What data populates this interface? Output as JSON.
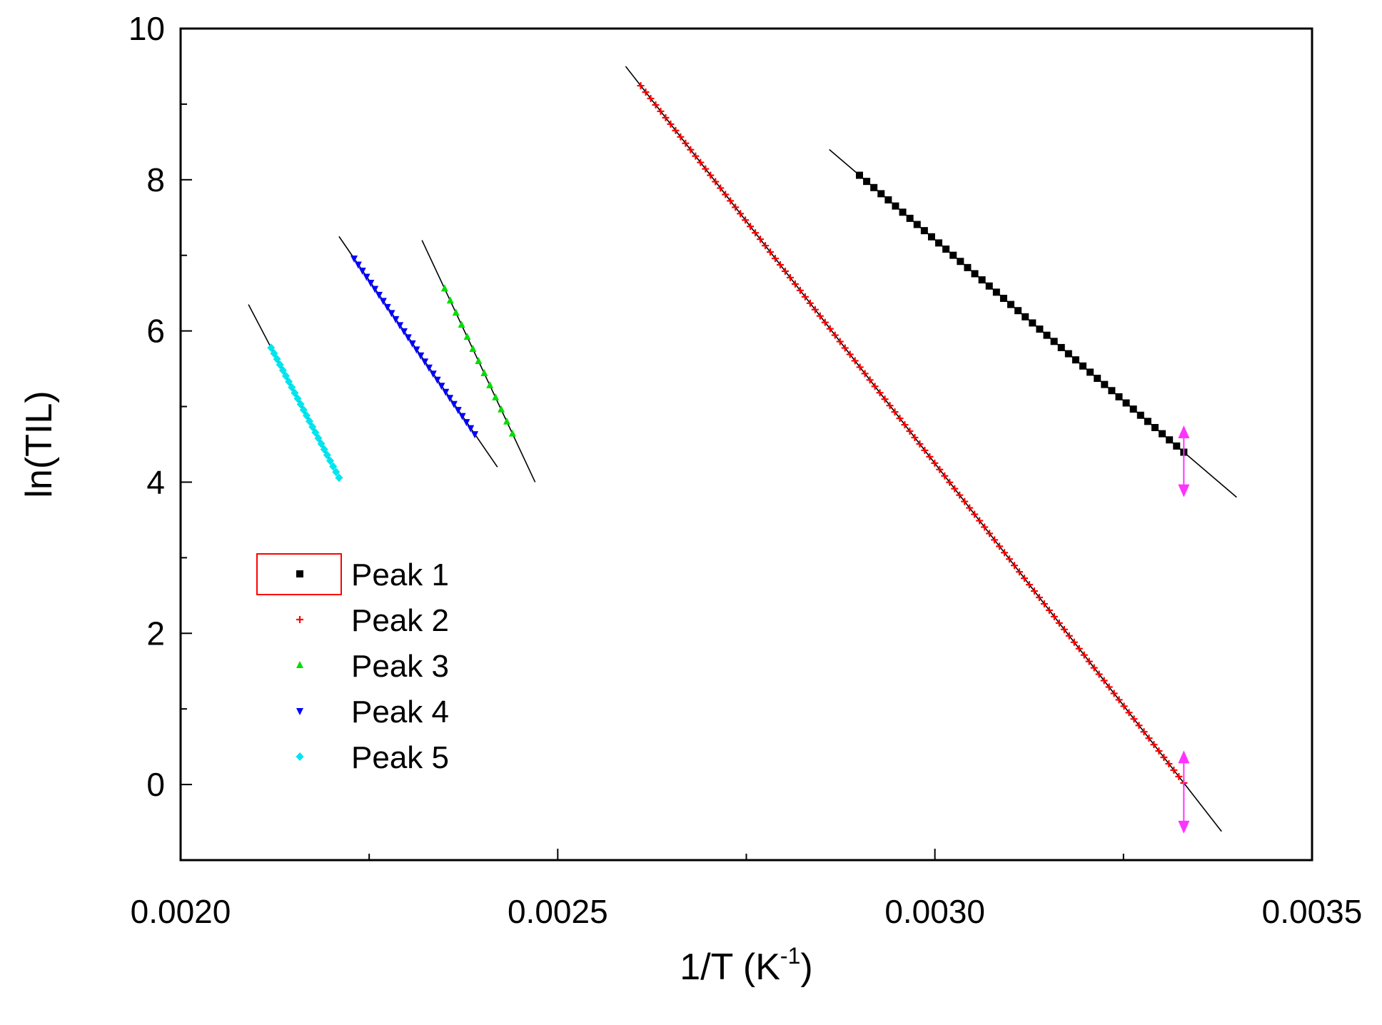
{
  "chart_data": {
    "type": "scatter",
    "title": "",
    "xlabel": "1/T (K",
    "xlabel_sup": "-1",
    "xlabel_close": ")",
    "ylabel": "ln(TIL)",
    "xlim": [
      0.002,
      0.0035
    ],
    "ylim": [
      -1,
      10
    ],
    "x_ticks": [
      0.002,
      0.0025,
      0.003,
      0.0035
    ],
    "x_tick_labels": [
      "0.0020",
      "0.0025",
      "0.0030",
      "0.0035"
    ],
    "x_minor_ticks": [
      0.00225,
      0.00275,
      0.00325
    ],
    "y_ticks": [
      0,
      2,
      4,
      6,
      8,
      10
    ],
    "y_tick_labels": [
      "0",
      "2",
      "4",
      "6",
      "8",
      "10"
    ],
    "y_minor_ticks": [
      1,
      3,
      5,
      7,
      9
    ],
    "grid": false,
    "legend_position": "middle-left",
    "series": [
      {
        "name": "Peak 1",
        "color": "#000000",
        "marker": "square",
        "x_start": 0.0029,
        "x_end": 0.00333,
        "n_points": 46,
        "fit_line": {
          "x": [
            0.00286,
            0.0034
          ],
          "y": [
            8.4,
            3.8
          ]
        }
      },
      {
        "name": "Peak 2",
        "color": "#ff0000",
        "marker": "plus",
        "x_start": 0.00261,
        "x_end": 0.00333,
        "n_points": 110,
        "fit_line": {
          "x": [
            0.00259,
            0.00338
          ],
          "y": [
            9.5,
            -0.62
          ]
        }
      },
      {
        "name": "Peak 3",
        "color": "#00dd00",
        "marker": "triangle-up",
        "x_start": 0.00235,
        "x_end": 0.00244,
        "n_points": 13,
        "fit_line": {
          "x": [
            0.00232,
            0.00247
          ],
          "y": [
            7.2,
            4.0
          ]
        }
      },
      {
        "name": "Peak 4",
        "color": "#0000ff",
        "marker": "triangle-down",
        "x_start": 0.00223,
        "x_end": 0.00239,
        "n_points": 30,
        "fit_line": {
          "x": [
            0.00221,
            0.00242
          ],
          "y": [
            7.25,
            4.2
          ]
        }
      },
      {
        "name": "Peak 5",
        "color": "#00e5ee",
        "marker": "diamond",
        "x_start": 0.00212,
        "x_end": 0.00221,
        "n_points": 24,
        "fit_line": {
          "x": [
            0.00209,
            0.0022
          ],
          "y": [
            6.35,
            4.25
          ]
        }
      }
    ],
    "annotations": [
      {
        "type": "double-arrow",
        "color": "#ff33ff",
        "x": 0.00333,
        "y_from": 3.8,
        "y_to": 4.75
      },
      {
        "type": "double-arrow",
        "color": "#ff33ff",
        "x": 0.00333,
        "y_from": -0.65,
        "y_to": 0.45
      }
    ],
    "legend_box_color": "#ff0000"
  }
}
